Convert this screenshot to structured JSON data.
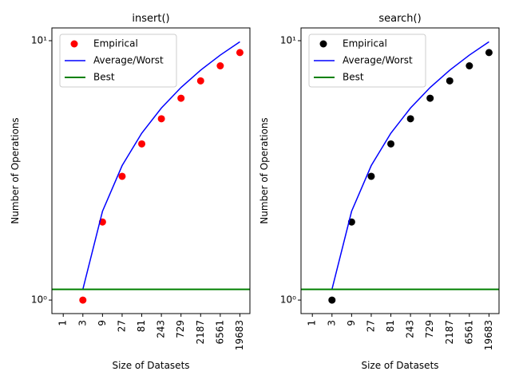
{
  "chart_data": [
    {
      "type": "line",
      "title": "insert()",
      "xlabel": "Size of Datasets",
      "ylabel": "Number of Operations",
      "xscale": "log",
      "xbase": 3,
      "yscale": "log",
      "legend": "upper left",
      "xlim": [
        0.53,
        34500
      ],
      "ylim": [
        0.887,
        11.2
      ],
      "xticks": [
        1,
        3,
        9,
        27,
        81,
        243,
        729,
        2187,
        6561,
        19683
      ],
      "yticks": [
        {
          "value": 1,
          "label": "10⁰"
        },
        {
          "value": 10,
          "label": "10¹"
        }
      ],
      "series": [
        {
          "name": "Empirical",
          "kind": "scatter",
          "color": "#ff0000",
          "x": [
            3,
            9,
            27,
            81,
            243,
            729,
            2187,
            6561,
            19683
          ],
          "values": [
            1,
            2,
            3,
            4,
            5,
            6,
            7,
            8,
            9
          ]
        },
        {
          "name": "Average/Worst",
          "kind": "line",
          "color": "#0000ff",
          "x": [
            3,
            9,
            27,
            81,
            243,
            729,
            2187,
            6561,
            19683
          ],
          "values": [
            1.1,
            2.2,
            3.3,
            4.4,
            5.5,
            6.6,
            7.7,
            8.8,
            9.9
          ]
        },
        {
          "name": "Best",
          "kind": "hline",
          "color": "#008000",
          "values": [
            1.1
          ]
        }
      ]
    },
    {
      "type": "line",
      "title": "search()",
      "xlabel": "Size of Datasets",
      "ylabel": "Number of Operations",
      "xscale": "log",
      "xbase": 3,
      "yscale": "log",
      "legend": "upper left",
      "xlim": [
        0.53,
        34500
      ],
      "ylim": [
        0.887,
        11.2
      ],
      "xticks": [
        1,
        3,
        9,
        27,
        81,
        243,
        729,
        2187,
        6561,
        19683
      ],
      "yticks": [
        {
          "value": 1,
          "label": "10⁰"
        },
        {
          "value": 10,
          "label": "10¹"
        }
      ],
      "series": [
        {
          "name": "Empirical",
          "kind": "scatter",
          "color": "#000000",
          "x": [
            3,
            9,
            27,
            81,
            243,
            729,
            2187,
            6561,
            19683
          ],
          "values": [
            1,
            2,
            3,
            4,
            5,
            6,
            7,
            8,
            9
          ]
        },
        {
          "name": "Average/Worst",
          "kind": "line",
          "color": "#0000ff",
          "x": [
            3,
            9,
            27,
            81,
            243,
            729,
            2187,
            6561,
            19683
          ],
          "values": [
            1.1,
            2.2,
            3.3,
            4.4,
            5.5,
            6.6,
            7.7,
            8.8,
            9.9
          ]
        },
        {
          "name": "Best",
          "kind": "hline",
          "color": "#008000",
          "values": [
            1.1
          ]
        }
      ]
    }
  ]
}
